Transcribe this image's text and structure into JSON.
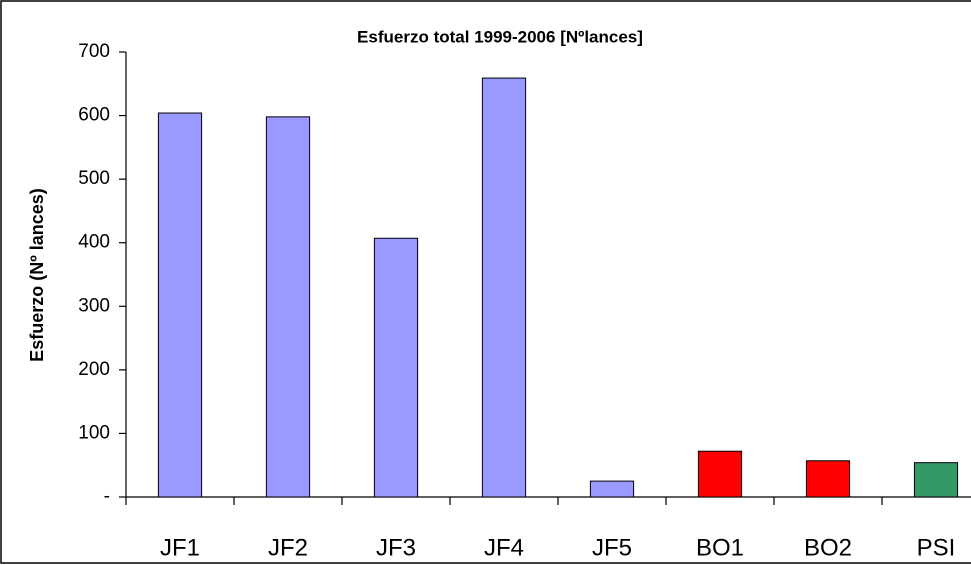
{
  "chart_data": {
    "type": "bar",
    "title": "Esfuerzo total 1999-2006 [Nºlances]",
    "y_label": "Esfuerzo (Nº lances)",
    "categories": [
      "JF1",
      "JF2",
      "JF3",
      "JF4",
      "JF5",
      "BO1",
      "BO2",
      "PSI"
    ],
    "values": [
      604,
      598,
      407,
      659,
      25,
      72,
      57,
      54
    ],
    "colors": [
      "#9999ff",
      "#9999ff",
      "#9999ff",
      "#9999ff",
      "#9999ff",
      "#ff0000",
      "#ff0000",
      "#339966"
    ],
    "ylim": [
      0,
      700
    ],
    "yticks": [
      {
        "value": 0,
        "label": "-"
      },
      100,
      200,
      300,
      400,
      500,
      600,
      700
    ],
    "grid": false
  }
}
